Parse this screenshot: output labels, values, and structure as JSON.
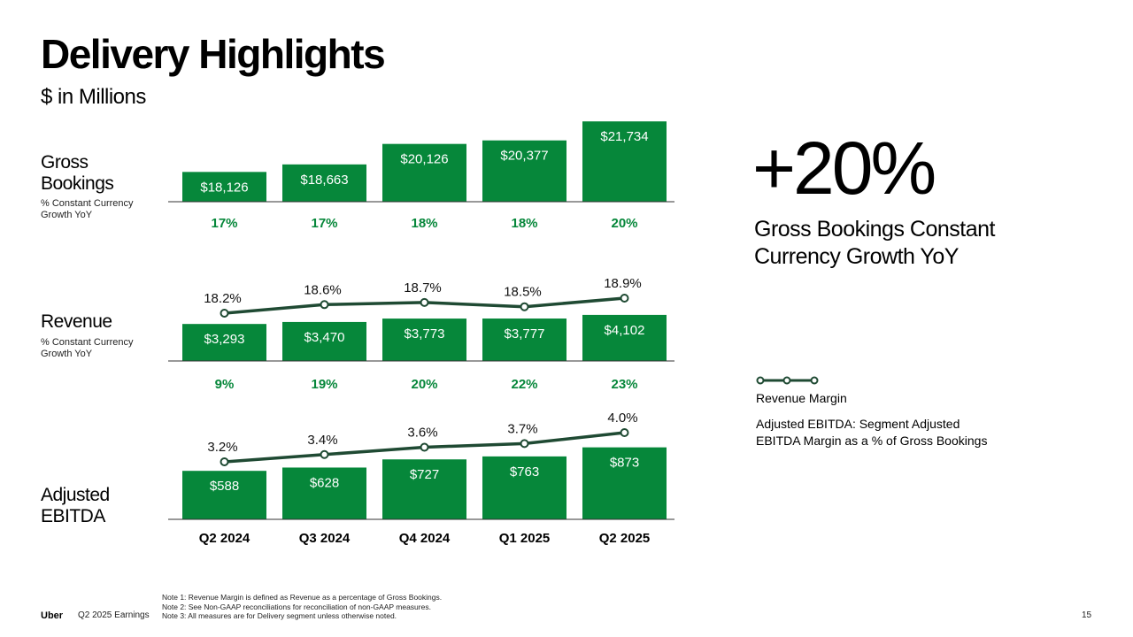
{
  "title": "Delivery Highlights",
  "subtitle": "$ in Millions",
  "rows": {
    "gross_bookings": {
      "label": "Gross Bookings",
      "sublabel": "% Constant Currency Growth YoY"
    },
    "revenue": {
      "label": "Revenue",
      "sublabel": "% Constant Currency Growth YoY"
    },
    "ebitda": {
      "label": "Adjusted EBITDA"
    }
  },
  "highlight": {
    "value": "+20%",
    "caption": "Gross Bookings Constant Currency Growth YoY"
  },
  "legend": {
    "label": "Revenue Margin",
    "note": "Adjusted EBITDA: Segment Adjusted EBITDA Margin as a % of Gross Bookings"
  },
  "colors": {
    "bar": "#06873a",
    "line": "#1f4a33",
    "growth_text": "#06873a"
  },
  "chart_data": [
    {
      "type": "bar",
      "title": "Gross Bookings",
      "categories": [
        "Q2 2024",
        "Q3 2024",
        "Q4 2024",
        "Q1 2025",
        "Q2 2025"
      ],
      "values": [
        18126,
        18663,
        20126,
        20377,
        21734
      ],
      "value_labels": [
        "$18,126",
        "$18,663",
        "$20,126",
        "$20,377",
        "$21,734"
      ],
      "growth_labels": [
        "17%",
        "17%",
        "18%",
        "18%",
        "20%"
      ],
      "ylim": [
        16000,
        22000
      ]
    },
    {
      "type": "bar",
      "title": "Revenue",
      "categories": [
        "Q2 2024",
        "Q3 2024",
        "Q4 2024",
        "Q1 2025",
        "Q2 2025"
      ],
      "values": [
        3293,
        3470,
        3773,
        3777,
        4102
      ],
      "value_labels": [
        "$3,293",
        "$3,470",
        "$3,773",
        "$3,777",
        "$4,102"
      ],
      "growth_labels": [
        "9%",
        "19%",
        "20%",
        "22%",
        "23%"
      ],
      "margin_series": {
        "name": "Revenue Margin",
        "values": [
          18.2,
          18.6,
          18.7,
          18.5,
          18.9
        ],
        "labels": [
          "18.2%",
          "18.6%",
          "18.7%",
          "18.5%",
          "18.9%"
        ]
      }
    },
    {
      "type": "bar",
      "title": "Adjusted EBITDA",
      "categories": [
        "Q2 2024",
        "Q3 2024",
        "Q4 2024",
        "Q1 2025",
        "Q2 2025"
      ],
      "values": [
        588,
        628,
        727,
        763,
        873
      ],
      "value_labels": [
        "$588",
        "$628",
        "$727",
        "$763",
        "$873"
      ],
      "margin_series": {
        "name": "Adjusted EBITDA Margin",
        "values": [
          3.2,
          3.4,
          3.6,
          3.7,
          4.0
        ],
        "labels": [
          "3.2%",
          "3.4%",
          "3.6%",
          "3.7%",
          "4.0%"
        ]
      }
    }
  ],
  "footer": {
    "brand": "Uber",
    "event": "Q2 2025 Earnings",
    "notes": [
      "Note 1: Revenue Margin is defined as Revenue as a percentage of Gross Bookings.",
      "Note 2: See Non-GAAP reconciliations for reconciliation of non-GAAP measures.",
      "Note 3: All measures are for Delivery segment unless otherwise noted."
    ],
    "page": "15"
  }
}
